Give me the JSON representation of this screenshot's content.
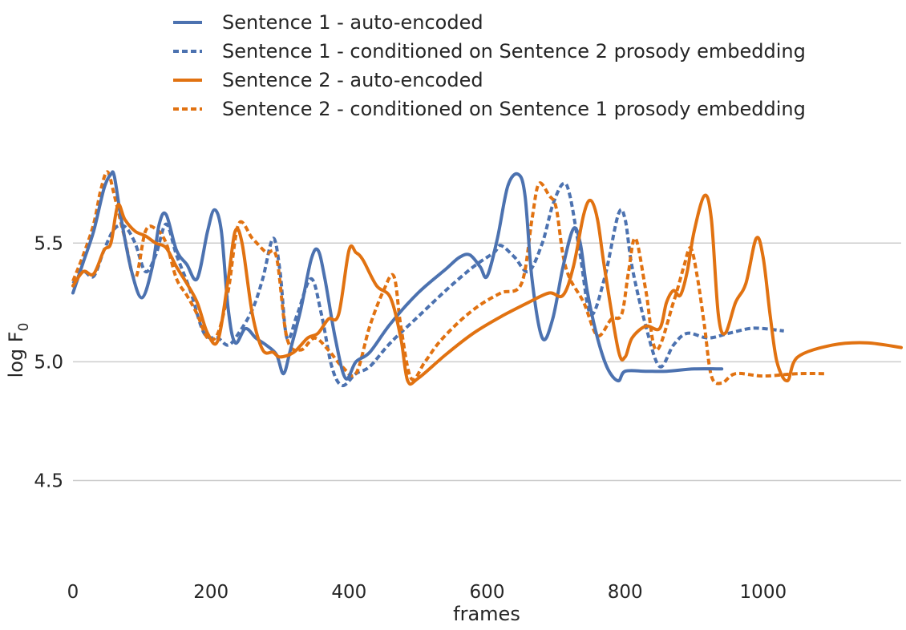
{
  "chart_data": {
    "type": "line",
    "title": "",
    "xlabel": "frames",
    "ylabel_main": "log F",
    "ylabel_sub": "0",
    "xlim": [
      0,
      1200
    ],
    "ylim": [
      4.12,
      5.95
    ],
    "xticks": [
      0,
      200,
      400,
      600,
      800,
      1000
    ],
    "yticks": [
      4.5,
      5.0,
      5.5
    ],
    "xtick_labels": [
      "0",
      "200",
      "400",
      "600",
      "800",
      "1000"
    ],
    "ytick_labels": [
      "4.5",
      "5.0",
      "5.5"
    ],
    "grid": "horizontal",
    "legend_position": "top",
    "colors": {
      "blue": "#4c72b0",
      "orange": "#dd8452",
      "orange_line": "#e17211",
      "grid": "#cccccc"
    },
    "series": [
      {
        "name": "Sentence 1 - auto-encoded",
        "color": "#4c72b0",
        "style": "solid",
        "x": [
          0,
          15,
          30,
          45,
          55,
          60,
          70,
          85,
          100,
          115,
          125,
          135,
          150,
          165,
          180,
          195,
          205,
          215,
          225,
          235,
          250,
          265,
          280,
          295,
          305,
          315,
          330,
          345,
          355,
          365,
          380,
          395,
          410,
          430,
          460,
          500,
          540,
          560,
          575,
          590,
          600,
          615,
          630,
          645,
          655,
          665,
          680,
          695,
          710,
          725,
          735,
          745,
          760,
          775,
          790,
          800,
          830,
          860,
          900,
          940
        ],
        "y": [
          5.29,
          5.42,
          5.55,
          5.73,
          5.79,
          5.78,
          5.6,
          5.38,
          5.27,
          5.4,
          5.58,
          5.62,
          5.47,
          5.41,
          5.35,
          5.55,
          5.64,
          5.55,
          5.22,
          5.08,
          5.14,
          5.1,
          5.07,
          5.03,
          4.95,
          5.05,
          5.22,
          5.43,
          5.47,
          5.35,
          5.1,
          4.93,
          5.0,
          5.04,
          5.16,
          5.29,
          5.39,
          5.44,
          5.45,
          5.4,
          5.36,
          5.52,
          5.74,
          5.79,
          5.7,
          5.35,
          5.1,
          5.18,
          5.4,
          5.56,
          5.5,
          5.3,
          5.1,
          4.97,
          4.92,
          4.96,
          4.96,
          4.96,
          4.97,
          4.97
        ]
      },
      {
        "name": "Sentence 1 - conditioned on Sentence 2 prosody embedding",
        "color": "#4c72b0",
        "style": "dotted",
        "x": [
          0,
          15,
          30,
          45,
          60,
          75,
          90,
          105,
          120,
          135,
          150,
          170,
          190,
          210,
          225,
          240,
          260,
          275,
          290,
          300,
          310,
          325,
          345,
          360,
          375,
          390,
          410,
          430,
          460,
          500,
          540,
          580,
          610,
          620,
          640,
          660,
          680,
          695,
          710,
          720,
          735,
          750,
          770,
          790,
          800,
          810,
          830,
          850,
          870,
          890,
          920,
          950,
          980,
          1000,
          1030
        ],
        "y": [
          5.33,
          5.38,
          5.36,
          5.47,
          5.56,
          5.57,
          5.5,
          5.38,
          5.45,
          5.58,
          5.45,
          5.3,
          5.12,
          5.1,
          5.07,
          5.12,
          5.22,
          5.35,
          5.52,
          5.38,
          5.1,
          5.2,
          5.35,
          5.2,
          4.98,
          4.9,
          4.95,
          4.98,
          5.08,
          5.19,
          5.3,
          5.4,
          5.46,
          5.49,
          5.44,
          5.38,
          5.5,
          5.66,
          5.75,
          5.7,
          5.45,
          5.2,
          5.35,
          5.62,
          5.6,
          5.4,
          5.15,
          4.98,
          5.07,
          5.12,
          5.1,
          5.12,
          5.14,
          5.14,
          5.13
        ]
      },
      {
        "name": "Sentence 2 - auto-encoded",
        "color": "#e17211",
        "style": "solid",
        "x": [
          0,
          15,
          30,
          45,
          55,
          65,
          75,
          90,
          105,
          120,
          135,
          150,
          165,
          180,
          195,
          210,
          225,
          235,
          245,
          260,
          275,
          290,
          300,
          320,
          340,
          355,
          370,
          385,
          400,
          410,
          420,
          440,
          460,
          475,
          485,
          500,
          540,
          580,
          620,
          660,
          690,
          710,
          725,
          740,
          750,
          760,
          770,
          790,
          800,
          810,
          830,
          850,
          860,
          870,
          880,
          890,
          900,
          915,
          925,
          935,
          945,
          960,
          975,
          990,
          1000,
          1010,
          1020,
          1035,
          1050,
          1100,
          1150,
          1200
        ],
        "y": [
          5.32,
          5.38,
          5.37,
          5.47,
          5.5,
          5.66,
          5.6,
          5.55,
          5.53,
          5.5,
          5.48,
          5.4,
          5.33,
          5.25,
          5.12,
          5.09,
          5.35,
          5.55,
          5.5,
          5.2,
          5.05,
          5.04,
          5.02,
          5.04,
          5.1,
          5.12,
          5.18,
          5.2,
          5.47,
          5.46,
          5.43,
          5.32,
          5.27,
          5.1,
          4.92,
          4.93,
          5.03,
          5.12,
          5.19,
          5.25,
          5.29,
          5.28,
          5.4,
          5.62,
          5.68,
          5.6,
          5.4,
          5.05,
          5.02,
          5.1,
          5.15,
          5.14,
          5.25,
          5.3,
          5.28,
          5.38,
          5.55,
          5.7,
          5.6,
          5.2,
          5.12,
          5.25,
          5.33,
          5.52,
          5.44,
          5.2,
          5.0,
          4.92,
          5.02,
          5.07,
          5.08,
          5.06
        ]
      },
      {
        "name": "Sentence 2 - conditioned on Sentence 1 prosody embedding",
        "color": "#e17211",
        "style": "dotted",
        "x": [
          0,
          15,
          30,
          40,
          50,
          60,
          75,
          90,
          105,
          120,
          135,
          150,
          165,
          180,
          195,
          210,
          225,
          240,
          260,
          280,
          295,
          310,
          330,
          350,
          370,
          390,
          410,
          430,
          450,
          465,
          475,
          490,
          510,
          530,
          560,
          590,
          620,
          650,
          665,
          675,
          690,
          700,
          710,
          720,
          740,
          760,
          780,
          795,
          805,
          815,
          830,
          845,
          870,
          885,
          895,
          905,
          915,
          925,
          940,
          960,
          1000,
          1050,
          1090
        ],
        "y": [
          5.34,
          5.45,
          5.58,
          5.72,
          5.8,
          5.7,
          5.52,
          5.35,
          5.55,
          5.56,
          5.5,
          5.35,
          5.28,
          5.2,
          5.1,
          5.12,
          5.3,
          5.58,
          5.52,
          5.46,
          5.44,
          5.1,
          5.05,
          5.1,
          5.05,
          4.98,
          4.95,
          5.15,
          5.3,
          5.36,
          5.15,
          4.93,
          5.0,
          5.08,
          5.17,
          5.24,
          5.29,
          5.33,
          5.6,
          5.75,
          5.7,
          5.65,
          5.45,
          5.35,
          5.25,
          5.11,
          5.18,
          5.2,
          5.38,
          5.52,
          5.3,
          5.05,
          5.25,
          5.4,
          5.48,
          5.35,
          5.15,
          4.94,
          4.91,
          4.95,
          4.94,
          4.95,
          4.95
        ]
      }
    ]
  }
}
